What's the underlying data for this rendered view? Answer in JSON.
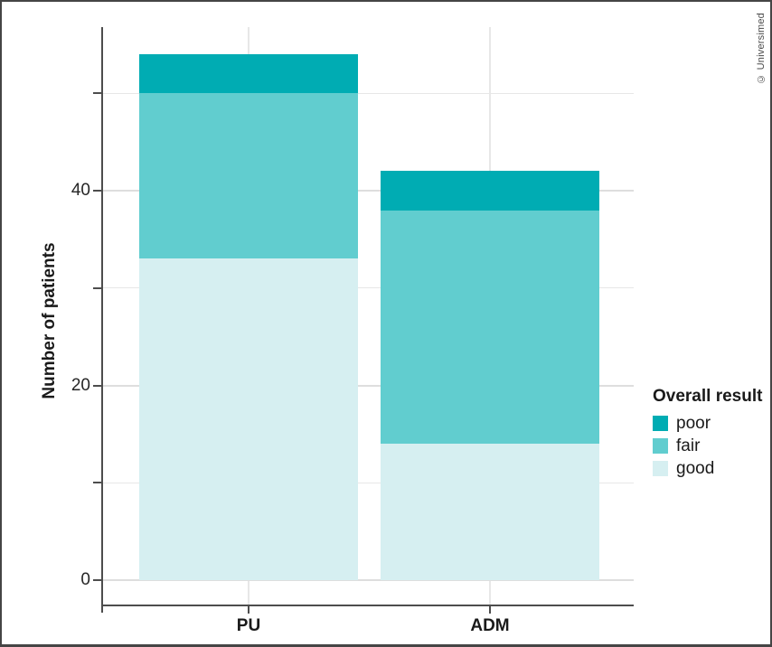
{
  "frame": {
    "credit": "© Universimed",
    "background": "#ffffff",
    "border_color": "#454545"
  },
  "colors": {
    "poor": "#00acb3",
    "fair": "#61cdcf",
    "good": "#d6eff1",
    "axis": "#4d4d4d",
    "grid_major": "#dedede",
    "grid_minor": "#e7e7e7",
    "text": "#1a1a1a"
  },
  "chart_data": {
    "type": "bar",
    "stacked": true,
    "title": "",
    "xlabel": "",
    "ylabel": "Number of patients",
    "categories": [
      "PU",
      "ADM"
    ],
    "series": [
      {
        "name": "good",
        "color": "#d6eff1",
        "values": [
          33,
          14
        ]
      },
      {
        "name": "fair",
        "color": "#61cdcf",
        "values": [
          17,
          24
        ]
      },
      {
        "name": "poor",
        "color": "#00acb3",
        "values": [
          4,
          4
        ]
      }
    ],
    "totals": [
      54,
      42
    ],
    "y_ticks_major": [
      0,
      20,
      40
    ],
    "y_ticks_minor": [
      10,
      30,
      50
    ],
    "ylim": [
      0,
      57
    ],
    "grid": "on",
    "legend": {
      "title": "Overall result",
      "position": "right",
      "entries": [
        "poor",
        "fair",
        "good"
      ]
    }
  }
}
